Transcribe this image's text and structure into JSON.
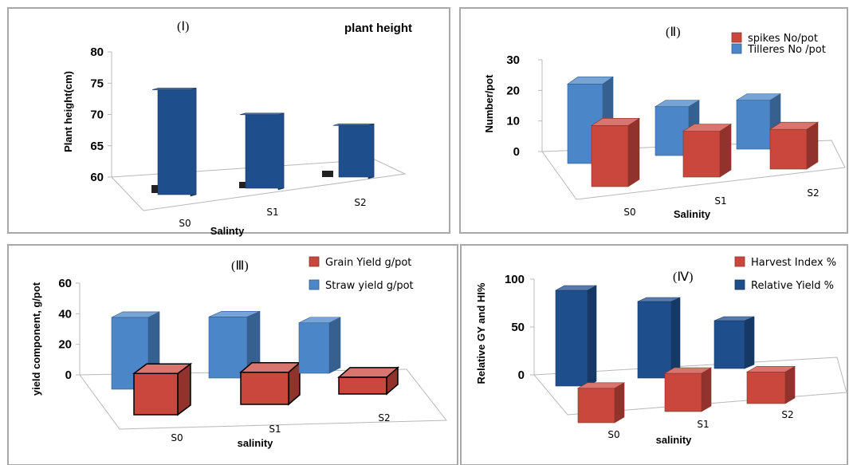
{
  "chart_data": [
    {
      "type": "bar",
      "panel": "(Ⅰ)",
      "title": "plant height",
      "categories": [
        "S0",
        "S1",
        "S2"
      ],
      "series": [
        {
          "name": "",
          "values": [
            77,
            72,
            68.5
          ],
          "color": "#1f4e8c"
        }
      ],
      "xlabel": "Salinty",
      "ylabel": "Plant height(cm)",
      "ylim": [
        60,
        80
      ],
      "yticks": [
        "60",
        "65",
        "70",
        "75",
        "80"
      ],
      "legend": "none",
      "grid": false
    },
    {
      "type": "bar",
      "panel": "(Ⅱ)",
      "title": "",
      "categories": [
        "S0",
        "S1",
        "S2"
      ],
      "series": [
        {
          "name": "Tilleres No /pot",
          "values": [
            26,
            16,
            16
          ],
          "color": "#4a86c8"
        },
        {
          "name": "spikes No/pot",
          "values": [
            20,
            15,
            13
          ],
          "color": "#c9473d"
        }
      ],
      "xlabel": "Salinity",
      "ylabel": "Number/pot",
      "ylim": [
        0,
        30
      ],
      "yticks": [
        "0",
        "10",
        "20",
        "30"
      ],
      "legend": "top-right",
      "grid": false
    },
    {
      "type": "bar",
      "panel": "(Ⅲ)",
      "title": "",
      "categories": [
        "S0",
        "S1",
        "S2"
      ],
      "series": [
        {
          "name": "Straw yield g/pot",
          "values": [
            47,
            40,
            33
          ],
          "color": "#4a86c8"
        },
        {
          "name": "Grain Yield  g/pot",
          "values": [
            27,
            21,
            11
          ],
          "color": "#c9473d"
        }
      ],
      "xlabel": "salinity",
      "ylabel": "yield component, g/pot",
      "ylim": [
        0,
        60
      ],
      "yticks": [
        "0",
        "20",
        "40",
        "60"
      ],
      "legend": "top-right",
      "grid": false
    },
    {
      "type": "bar",
      "panel": "(Ⅳ)",
      "title": "",
      "categories": [
        "S0",
        "S1",
        "S2"
      ],
      "series": [
        {
          "name": "Relative Yield %",
          "values": [
            100,
            80,
            50
          ],
          "color": "#1f4e8c"
        },
        {
          "name": "Harvest Index %",
          "values": [
            36,
            40,
            33
          ],
          "color": "#c9473d"
        }
      ],
      "xlabel": "salinity",
      "ylabel": "Relative GY and HI%",
      "ylim": [
        0,
        100
      ],
      "yticks": [
        "0",
        "50",
        "100"
      ],
      "legend": "top-right",
      "grid": false
    }
  ]
}
